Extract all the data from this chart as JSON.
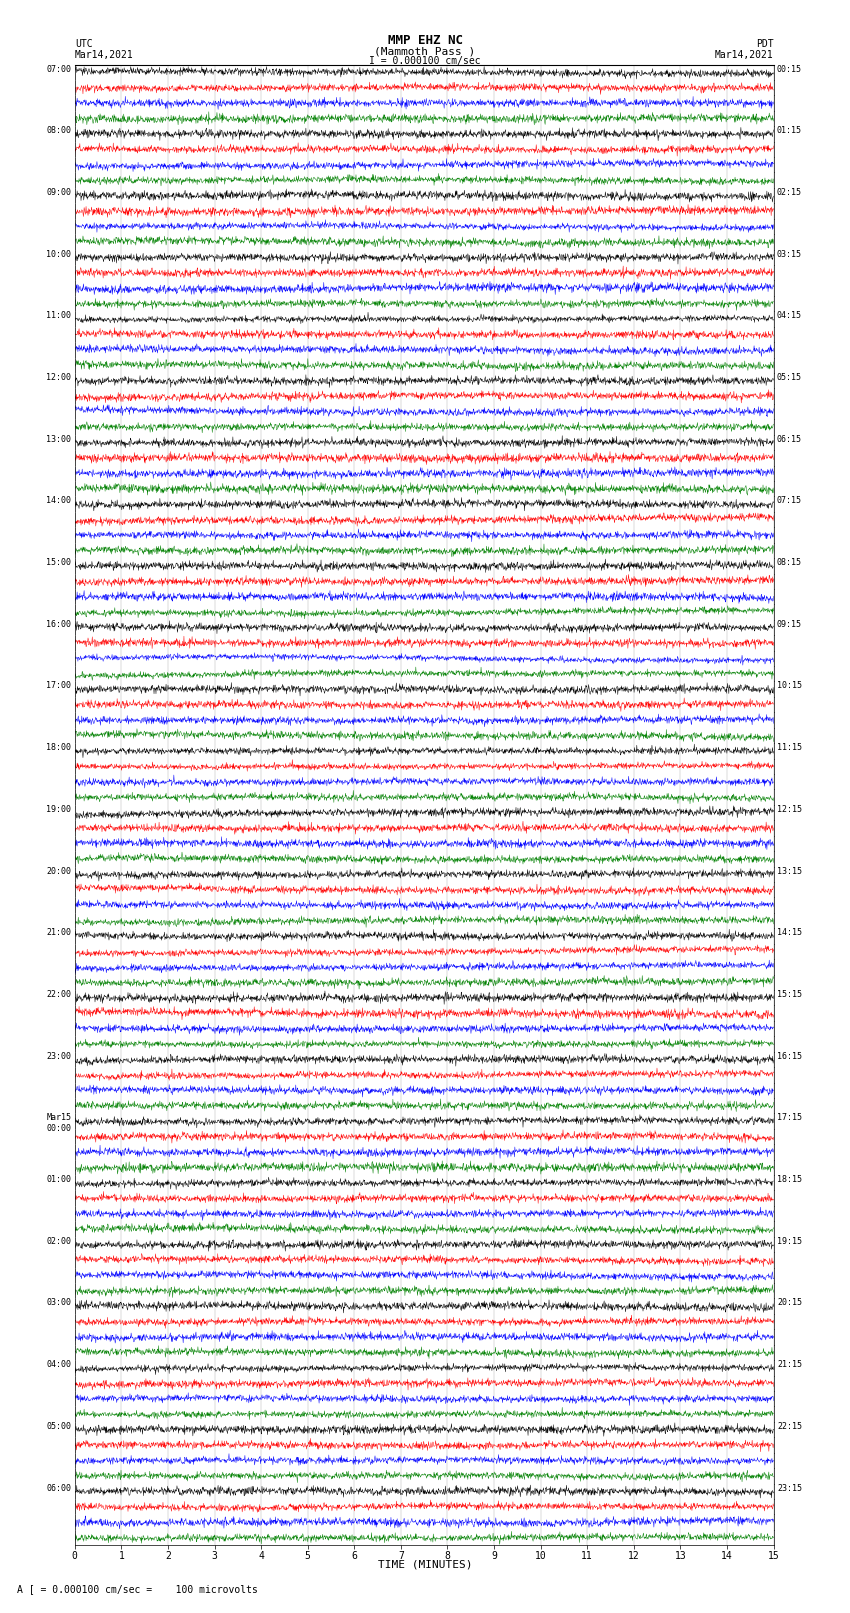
{
  "title_line1": "MMP EHZ NC",
  "title_line2": "(Mammoth Pass )",
  "scale_label": "I = 0.000100 cm/sec",
  "left_label_top": "UTC",
  "left_label_date": "Mar14,2021",
  "right_label_top": "PDT",
  "right_label_date": "Mar14,2021",
  "bottom_label": "TIME (MINUTES)",
  "footer_text": "A [ = 0.000100 cm/sec =    100 microvolts",
  "utc_times": [
    "07:00",
    "08:00",
    "09:00",
    "10:00",
    "11:00",
    "12:00",
    "13:00",
    "14:00",
    "15:00",
    "16:00",
    "17:00",
    "18:00",
    "19:00",
    "20:00",
    "21:00",
    "22:00",
    "23:00",
    "Mar15\n00:00",
    "01:00",
    "02:00",
    "03:00",
    "04:00",
    "05:00",
    "06:00"
  ],
  "pdt_times": [
    "00:15",
    "01:15",
    "02:15",
    "03:15",
    "04:15",
    "05:15",
    "06:15",
    "07:15",
    "08:15",
    "09:15",
    "10:15",
    "11:15",
    "12:15",
    "13:15",
    "14:15",
    "15:15",
    "16:15",
    "17:15",
    "18:15",
    "19:15",
    "20:15",
    "21:15",
    "22:15",
    "23:15"
  ],
  "n_time_slots": 24,
  "n_traces_per_slot": 4,
  "n_points": 1800,
  "time_max": 15,
  "colors_per_slot": [
    "black",
    "red",
    "blue",
    "green"
  ],
  "bg_color": "#ffffff",
  "grid_color": "#888888",
  "trace_linewidth": 0.35,
  "amp_profile": [
    0.004,
    0.004,
    0.004,
    0.004,
    0.004,
    0.004,
    0.004,
    0.004,
    0.004,
    0.006,
    0.012,
    0.018,
    0.025,
    0.04,
    0.06,
    0.09,
    0.12,
    0.18,
    0.22,
    0.28,
    0.35,
    0.4,
    0.42,
    0.38
  ],
  "row_ylim": 0.5
}
